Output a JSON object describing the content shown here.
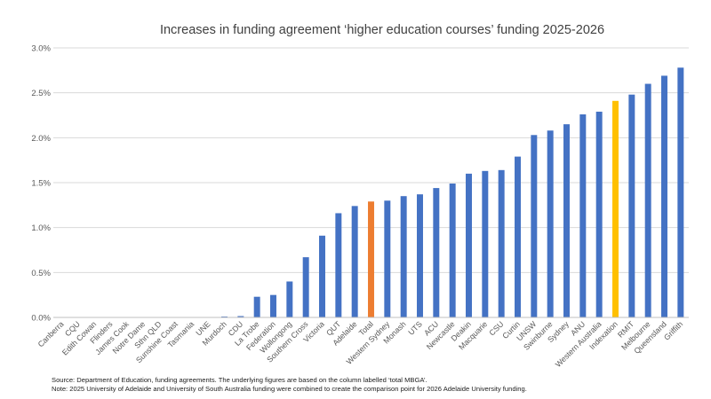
{
  "chart_data": {
    "type": "bar",
    "title": "Increases in funding agreement  ‘higher education courses’ funding 2025-2026",
    "xlabel": "",
    "ylabel": "",
    "ylim": [
      0,
      3.0
    ],
    "yticks": [
      "0.0%",
      "0.5%",
      "1.0%",
      "1.5%",
      "2.0%",
      "2.5%",
      "3.0%"
    ],
    "grid": true,
    "legend": "none",
    "categories": [
      "Canberra",
      "CQU",
      "Edith Cowan",
      "Flinders",
      "James Cook",
      "Notre Dame",
      "Sthn QLD",
      "Sunshine Coast",
      "Tasmania",
      "UNE",
      "Murdoch",
      "CDU",
      "La Trobe",
      "Federation",
      "Wollongong",
      "Southern Cross",
      "Victoria",
      "QUT",
      "Adelaide",
      "Total",
      "Western Sydney",
      "Monash",
      "UTS",
      "ACU",
      "Newcastle",
      "Deakin",
      "Macquarie",
      "CSU",
      "Curtin",
      "UNSW",
      "Swinburne",
      "Sydney",
      "ANU",
      "Western Australia",
      "Indexation",
      "RMIT",
      "Melbourne",
      "Queensland",
      "Griffith"
    ],
    "values": [
      0,
      0,
      0,
      0,
      0,
      0,
      0,
      0,
      0,
      0,
      0.01,
      0.015,
      0.23,
      0.25,
      0.4,
      0.67,
      0.91,
      1.16,
      1.24,
      1.29,
      1.3,
      1.35,
      1.37,
      1.44,
      1.49,
      1.6,
      1.63,
      1.64,
      1.79,
      2.03,
      2.08,
      2.15,
      2.26,
      2.29,
      2.41,
      2.48,
      2.6,
      2.69,
      2.78
    ],
    "colors": {
      "default": "#4472c4",
      "Total": "#ed7d31",
      "Indexation": "#ffc000"
    }
  },
  "notes": {
    "source": "Source: Department of Education, funding agreements. The underlying figures are based on the column labelled ‘total MBGA’.",
    "note": "Note: 2025 University of Adelaide and University of South Australia funding were combined to create the comparison point for 2026 Adelaide University funding."
  }
}
